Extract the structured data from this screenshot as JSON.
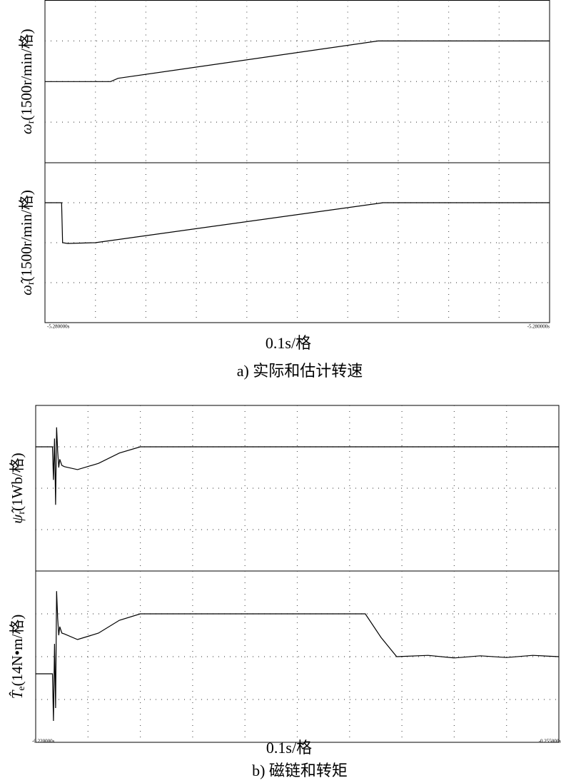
{
  "chart_data": [
    {
      "type": "line",
      "ylabel_symbol": "ω",
      "ylabel_sub": "r",
      "ylabel_unit": "(1500r/min/格)",
      "color": "#000000",
      "grid": true,
      "xlim": [
        0,
        10
      ],
      "ylim": [
        -2,
        2
      ],
      "x": [
        0,
        1.3,
        1.45,
        6.6,
        10
      ],
      "values": [
        0,
        0,
        0.08,
        1,
        1
      ]
    },
    {
      "type": "line",
      "ylabel_symbol": "ω̂",
      "ylabel_sub": "r",
      "ylabel_unit": "(1500r/min/格)",
      "color": "#000000",
      "grid": true,
      "xlim": [
        0,
        10
      ],
      "ylim": [
        -2,
        2
      ],
      "x": [
        0,
        0.33,
        0.35,
        0.45,
        1.0,
        6.7,
        10
      ],
      "values": [
        1,
        1,
        0,
        -0.02,
        0,
        1,
        1
      ]
    },
    {
      "type": "line",
      "ylabel_symbol": "ψ̂",
      "ylabel_sub": "r",
      "ylabel_unit": "(1Wb/格)",
      "color": "#000000",
      "grid": true,
      "xlim": [
        0,
        10
      ],
      "ylim": [
        -2,
        2
      ],
      "x": [
        0,
        0.32,
        0.34,
        0.36,
        0.38,
        0.4,
        0.42,
        0.44,
        0.46,
        0.5,
        0.55,
        0.8,
        1.2,
        1.6,
        2.0,
        4,
        6,
        8,
        10
      ],
      "values": [
        1,
        1,
        0.2,
        1.2,
        -0.4,
        1.47,
        0.9,
        0.5,
        0.7,
        0.55,
        0.52,
        0.45,
        0.6,
        0.85,
        1,
        1,
        1,
        1,
        1
      ]
    },
    {
      "type": "line",
      "ylabel_symbol": "T̂",
      "ylabel_sub": "e",
      "ylabel_unit": "(14N•m/格)",
      "color": "#000000",
      "grid": true,
      "xlim": [
        0,
        10
      ],
      "ylim": [
        -2,
        2
      ],
      "x": [
        0,
        0.32,
        0.34,
        0.36,
        0.38,
        0.4,
        0.42,
        0.44,
        0.46,
        0.5,
        0.55,
        0.8,
        1.2,
        1.6,
        2.0,
        4,
        6.3,
        6.6,
        6.9,
        7.5,
        8,
        8.5,
        9,
        9.5,
        10
      ],
      "values": [
        -0.4,
        -0.4,
        -1.5,
        0.3,
        -1.2,
        1.53,
        0.9,
        0.5,
        0.7,
        0.55,
        0.53,
        0.4,
        0.55,
        0.85,
        1,
        1,
        1,
        0.45,
        0,
        0.03,
        -0.03,
        0.02,
        -0.02,
        0.03,
        0
      ]
    }
  ],
  "panels": [
    {
      "xlabel": "0.1s/格",
      "caption": "a) 实际和估计转速",
      "x_start_label": "-5.280000s",
      "x_end_label": "-5.280000s"
    },
    {
      "xlabel": "0.1s/格",
      "caption": "b) 磁链和转矩",
      "x_start_label": "-0.220000s",
      "x_end_label": "-0.255000s"
    }
  ]
}
